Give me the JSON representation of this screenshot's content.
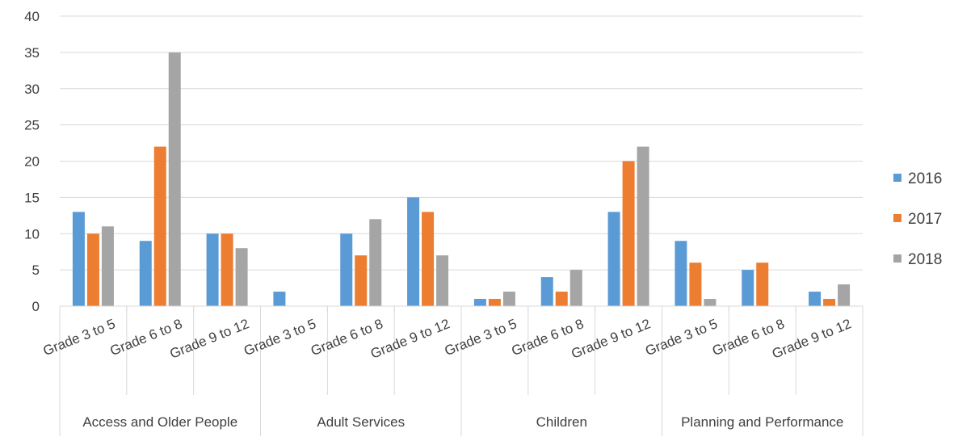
{
  "chart_data": {
    "type": "bar",
    "title": "",
    "xlabel": "",
    "ylabel": "",
    "ylim": [
      0,
      40
    ],
    "yticks": [
      0,
      5,
      10,
      15,
      20,
      25,
      30,
      35,
      40
    ],
    "grid": true,
    "legend_position": "right",
    "groups": [
      {
        "label": "Access and Older People",
        "categories": [
          "Grade 3 to 5",
          "Grade 6 to 8",
          "Grade 9 to 12"
        ]
      },
      {
        "label": "Adult Services",
        "categories": [
          "Grade 3 to 5",
          "Grade 6 to 8",
          "Grade 9 to 12"
        ]
      },
      {
        "label": "Children",
        "categories": [
          "Grade 3 to 5",
          "Grade 6 to 8",
          "Grade 9 to 12"
        ]
      },
      {
        "label": "Planning and Performance",
        "categories": [
          "Grade 3 to 5",
          "Grade 6 to 8",
          "Grade 9 to 12"
        ]
      }
    ],
    "categories": [
      "Grade 3 to 5",
      "Grade 6 to 8",
      "Grade 9 to 12",
      "Grade 3 to 5",
      "Grade 6 to 8",
      "Grade 9 to 12",
      "Grade 3 to 5",
      "Grade 6 to 8",
      "Grade 9 to 12",
      "Grade 3 to 5",
      "Grade 6 to 8",
      "Grade 9 to 12"
    ],
    "series": [
      {
        "name": "2016",
        "color": "#5B9BD5",
        "values": [
          13,
          9,
          10,
          2,
          10,
          15,
          1,
          4,
          13,
          9,
          5,
          2
        ]
      },
      {
        "name": "2017",
        "color": "#ED7D31",
        "values": [
          10,
          22,
          10,
          0,
          7,
          13,
          1,
          2,
          20,
          6,
          6,
          1
        ]
      },
      {
        "name": "2018",
        "color": "#A5A5A5",
        "values": [
          11,
          35,
          8,
          0,
          12,
          7,
          2,
          5,
          22,
          1,
          0,
          3
        ]
      }
    ]
  }
}
